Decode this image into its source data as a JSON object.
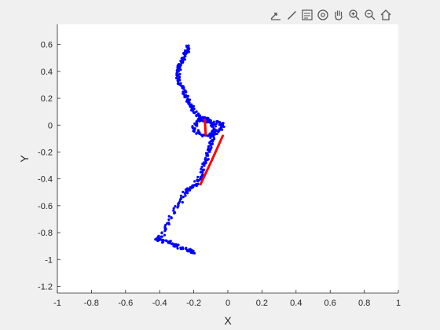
{
  "toolbar": {
    "icons": [
      "export-icon",
      "brush-icon",
      "legend-icon",
      "rotate-3d-icon",
      "pan-hand-icon",
      "zoom-in-icon",
      "zoom-out-icon",
      "home-icon"
    ]
  },
  "colors": {
    "figure_bg": "#f0f0f0",
    "axes_bg": "#ffffff",
    "points": "#0000ff",
    "segments": "#ff0000",
    "axis": "#262626"
  },
  "chart_data": {
    "type": "scatter",
    "title": "",
    "xlabel": "X",
    "ylabel": "Y",
    "xlim": [
      -1,
      1
    ],
    "ylim": [
      -1.25,
      0.75
    ],
    "grid": false,
    "xticks": [
      -1,
      -0.8,
      -0.6,
      -0.4,
      -0.2,
      0,
      0.2,
      0.4,
      0.6,
      0.8,
      1
    ],
    "xtick_labels": [
      "-1",
      "-0.8",
      "-0.6",
      "-0.4",
      "-0.2",
      "0",
      "0.2",
      "0.4",
      "0.6",
      "0.8",
      "1"
    ],
    "yticks": [
      -1.2,
      -1,
      -0.8,
      -0.6,
      -0.4,
      -0.2,
      0,
      0.2,
      0.4,
      0.6
    ],
    "ytick_labels": [
      "-1.2",
      "-1",
      "-0.8",
      "-0.6",
      "-0.4",
      "-0.2",
      "0",
      "0.2",
      "0.4",
      "0.6"
    ],
    "point_path": [
      [
        -0.23,
        0.59
      ],
      [
        -0.24,
        0.55
      ],
      [
        -0.26,
        0.5
      ],
      [
        -0.28,
        0.45
      ],
      [
        -0.29,
        0.4
      ],
      [
        -0.29,
        0.34
      ],
      [
        -0.27,
        0.28
      ],
      [
        -0.25,
        0.23
      ],
      [
        -0.23,
        0.18
      ],
      [
        -0.21,
        0.13
      ],
      [
        -0.19,
        0.09
      ],
      [
        -0.16,
        0.05
      ],
      [
        -0.12,
        0.03
      ],
      [
        -0.08,
        0.02
      ],
      [
        -0.04,
        0.01
      ],
      [
        -0.02,
        0.0
      ],
      [
        -0.05,
        -0.04
      ],
      [
        -0.09,
        -0.07
      ],
      [
        -0.13,
        -0.08
      ],
      [
        -0.17,
        -0.06
      ],
      [
        -0.2,
        -0.02
      ],
      [
        -0.18,
        0.03
      ],
      [
        -0.14,
        0.05
      ],
      [
        -0.1,
        0.04
      ],
      [
        -0.08,
        -0.02
      ],
      [
        -0.09,
        -0.08
      ],
      [
        -0.1,
        -0.15
      ],
      [
        -0.12,
        -0.22
      ],
      [
        -0.14,
        -0.3
      ],
      [
        -0.16,
        -0.38
      ],
      [
        -0.19,
        -0.44
      ],
      [
        -0.22,
        -0.47
      ],
      [
        -0.25,
        -0.5
      ],
      [
        -0.28,
        -0.57
      ],
      [
        -0.31,
        -0.63
      ],
      [
        -0.34,
        -0.7
      ],
      [
        -0.36,
        -0.76
      ],
      [
        -0.38,
        -0.8
      ],
      [
        -0.4,
        -0.84
      ],
      [
        -0.42,
        -0.85
      ],
      [
        -0.38,
        -0.86
      ],
      [
        -0.33,
        -0.88
      ],
      [
        -0.28,
        -0.91
      ],
      [
        -0.23,
        -0.93
      ],
      [
        -0.2,
        -0.95
      ]
    ],
    "point_path_counts": [
      14,
      14,
      14,
      14,
      14,
      14,
      14,
      14,
      14,
      10,
      10,
      10,
      10,
      10,
      10,
      10,
      10,
      10,
      10,
      10,
      10,
      10,
      10,
      10,
      12,
      12,
      14,
      14,
      14,
      14,
      10,
      10,
      10,
      8,
      6,
      6,
      6,
      6,
      6,
      10,
      10,
      10,
      10,
      10
    ],
    "point_spread": 0.012,
    "red_segments": [
      [
        [
          -0.135,
          0.04
        ],
        [
          -0.13,
          -0.07
        ]
      ],
      [
        [
          -0.03,
          -0.08
        ],
        [
          -0.09,
          -0.25
        ]
      ],
      [
        [
          -0.09,
          -0.25
        ],
        [
          -0.16,
          -0.44
        ]
      ]
    ]
  }
}
